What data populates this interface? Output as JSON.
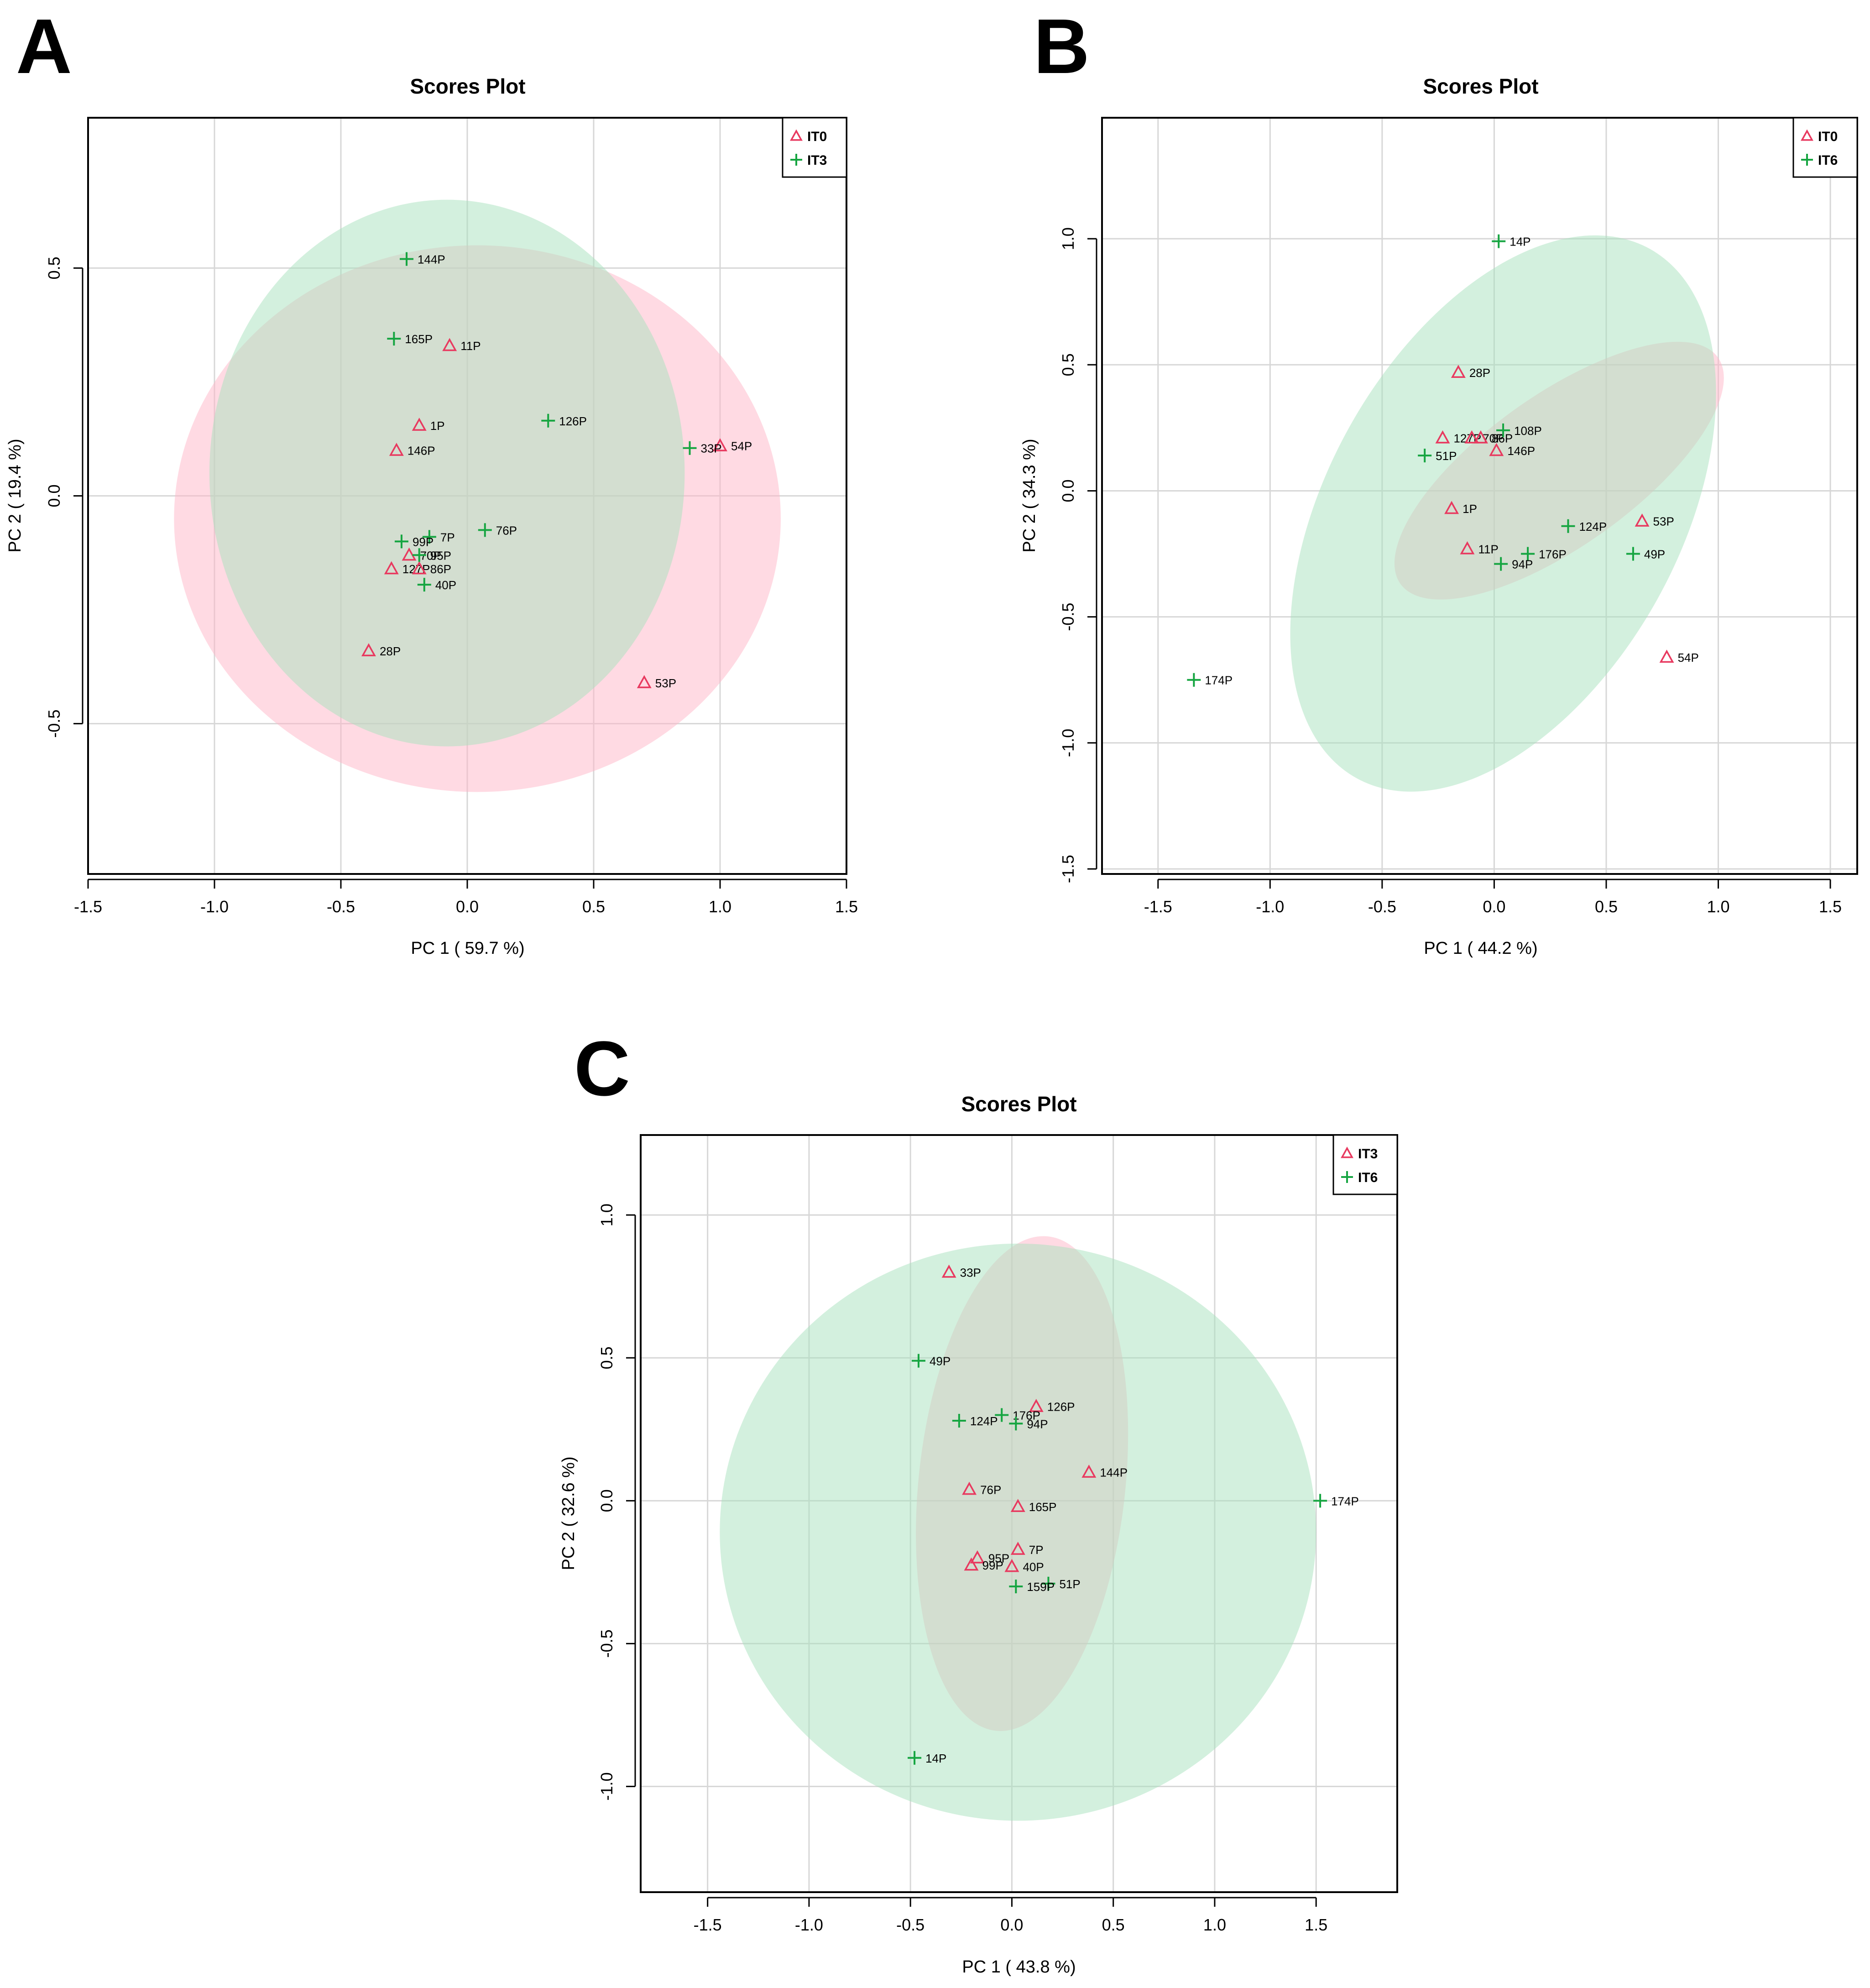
{
  "figure": {
    "panels": [
      "A",
      "B",
      "C"
    ]
  },
  "chart_data": [
    {
      "panel": "A",
      "type": "scatter",
      "title": "Scores Plot",
      "xlabel": "PC 1 ( 59.7 %)",
      "ylabel": "PC 2 ( 19.4 %)",
      "xlim": [
        -1.5,
        1.5
      ],
      "ylim": [
        -0.83,
        0.83
      ],
      "xticks": [
        "-1.5",
        "-1.0",
        "-0.5",
        "0.0",
        "0.5",
        "1.0",
        "1.5"
      ],
      "yticks": [
        "-0.5",
        "0.0",
        "0.5"
      ],
      "grid": true,
      "legend_position": "top-right",
      "series": [
        {
          "name": "IT0",
          "marker": "triangle",
          "color": "#e8395f",
          "fill": "#ffb6c8",
          "ellipse": {
            "cx": 0.04,
            "cy": -0.05,
            "rx": 1.2,
            "ry": 0.6
          },
          "points": [
            {
              "label": "11P",
              "x": -0.07,
              "y": 0.33
            },
            {
              "label": "1P",
              "x": -0.19,
              "y": 0.155
            },
            {
              "label": "146P",
              "x": -0.28,
              "y": 0.1
            },
            {
              "label": "54P",
              "x": 1.0,
              "y": 0.11
            },
            {
              "label": "70P",
              "x": -0.23,
              "y": -0.13
            },
            {
              "label": "127P",
              "x": -0.3,
              "y": -0.16
            },
            {
              "label": "86P",
              "x": -0.19,
              "y": -0.16
            },
            {
              "label": "28P",
              "x": -0.39,
              "y": -0.34
            },
            {
              "label": "53P",
              "x": 0.7,
              "y": -0.41
            }
          ]
        },
        {
          "name": "IT3",
          "marker": "plus",
          "color": "#16a541",
          "fill": "#a7e2bd",
          "ellipse": {
            "cx": -0.08,
            "cy": 0.05,
            "rx": 0.94,
            "ry": 0.6
          },
          "points": [
            {
              "label": "144P",
              "x": -0.24,
              "y": 0.52
            },
            {
              "label": "165P",
              "x": -0.29,
              "y": 0.345
            },
            {
              "label": "126P",
              "x": 0.32,
              "y": 0.165
            },
            {
              "label": "33P",
              "x": 0.88,
              "y": 0.105
            },
            {
              "label": "76P",
              "x": 0.07,
              "y": -0.075
            },
            {
              "label": "7P",
              "x": -0.15,
              "y": -0.09
            },
            {
              "label": "99P",
              "x": -0.26,
              "y": -0.1
            },
            {
              "label": "95P",
              "x": -0.19,
              "y": -0.13
            },
            {
              "label": "40P",
              "x": -0.17,
              "y": -0.195
            }
          ]
        }
      ]
    },
    {
      "panel": "B",
      "type": "scatter",
      "title": "Scores Plot",
      "xlabel": "PC 1 ( 44.2 %)",
      "ylabel": "PC 2 ( 34.3 %)",
      "xlim": [
        -1.75,
        1.62
      ],
      "ylim": [
        -1.52,
        1.48
      ],
      "xticks": [
        "-1.5",
        "-1.0",
        "-0.5",
        "0.0",
        "0.5",
        "1.0",
        "1.5"
      ],
      "yticks": [
        "-1.5",
        "-1.0",
        "-0.5",
        "0.0",
        "0.5",
        "1.0"
      ],
      "grid": true,
      "legend_position": "top-right",
      "series": [
        {
          "name": "IT0",
          "marker": "triangle",
          "color": "#e8395f",
          "fill": "#ffb6c8",
          "ellipse": {
            "cx": 0.29,
            "cy": 0.08,
            "rx": 0.87,
            "ry": 0.3,
            "angle": -35.5
          },
          "points": [
            {
              "label": "28P",
              "x": -0.16,
              "y": 0.47
            },
            {
              "label": "127P",
              "x": -0.23,
              "y": 0.21
            },
            {
              "label": "70P",
              "x": -0.1,
              "y": 0.21
            },
            {
              "label": "86P",
              "x": -0.06,
              "y": 0.21
            },
            {
              "label": "146P",
              "x": 0.01,
              "y": 0.16
            },
            {
              "label": "1P",
              "x": -0.19,
              "y": -0.07
            },
            {
              "label": "11P",
              "x": -0.12,
              "y": -0.23
            },
            {
              "label": "53P",
              "x": 0.66,
              "y": -0.12
            },
            {
              "label": "54P",
              "x": 0.77,
              "y": -0.66
            }
          ]
        },
        {
          "name": "IT6",
          "marker": "plus",
          "color": "#16a541",
          "fill": "#a7e2bd",
          "ellipse": {
            "cx": 0.04,
            "cy": -0.09,
            "rx": 1.35,
            "ry": 0.7,
            "angle": -61
          },
          "points": [
            {
              "label": "14P",
              "x": 0.02,
              "y": 0.99
            },
            {
              "label": "108P",
              "x": 0.04,
              "y": 0.24
            },
            {
              "label": "51P",
              "x": -0.31,
              "y": 0.14
            },
            {
              "label": "124P",
              "x": 0.33,
              "y": -0.14
            },
            {
              "label": "176P",
              "x": 0.15,
              "y": -0.25
            },
            {
              "label": "49P",
              "x": 0.62,
              "y": -0.25
            },
            {
              "label": "94P",
              "x": 0.03,
              "y": -0.29
            },
            {
              "label": "174P",
              "x": -1.34,
              "y": -0.75
            }
          ]
        }
      ]
    },
    {
      "panel": "C",
      "type": "scatter",
      "title": "Scores Plot",
      "xlabel": "PC 1 ( 43.8 %)",
      "ylabel": "PC 2 ( 32.6 %)",
      "xlim": [
        -1.83,
        1.9
      ],
      "ylim": [
        -1.37,
        1.28
      ],
      "xticks": [
        "-1.5",
        "-1.0",
        "-0.5",
        "0.0",
        "0.5",
        "1.0",
        "1.5"
      ],
      "yticks": [
        "-1.0",
        "-0.5",
        "0.0",
        "0.5",
        "1.0"
      ],
      "grid": true,
      "legend_position": "top-right",
      "series": [
        {
          "name": "IT3",
          "marker": "triangle",
          "color": "#e8395f",
          "fill": "#ffb6c8",
          "ellipse": {
            "cx": 0.05,
            "cy": 0.06,
            "rx": 0.51,
            "ry": 0.87,
            "angle": 6
          },
          "points": [
            {
              "label": "33P",
              "x": -0.31,
              "y": 0.8
            },
            {
              "label": "126P",
              "x": 0.12,
              "y": 0.33
            },
            {
              "label": "144P",
              "x": 0.38,
              "y": 0.1
            },
            {
              "label": "76P",
              "x": -0.21,
              "y": 0.04
            },
            {
              "label": "165P",
              "x": 0.03,
              "y": -0.02
            },
            {
              "label": "7P",
              "x": 0.03,
              "y": -0.17
            },
            {
              "label": "95P",
              "x": -0.17,
              "y": -0.2
            },
            {
              "label": "40P",
              "x": 0.0,
              "y": -0.23
            },
            {
              "label": "99P",
              "x": -0.2,
              "y": -0.225
            }
          ]
        },
        {
          "name": "IT6",
          "marker": "plus",
          "color": "#16a541",
          "fill": "#a7e2bd",
          "ellipse": {
            "cx": 0.03,
            "cy": -0.11,
            "rx": 1.47,
            "ry": 1.01
          },
          "points": [
            {
              "label": "49P",
              "x": -0.46,
              "y": 0.49
            },
            {
              "label": "176P",
              "x": -0.05,
              "y": 0.3
            },
            {
              "label": "124P",
              "x": -0.26,
              "y": 0.28
            },
            {
              "label": "94P",
              "x": 0.02,
              "y": 0.27
            },
            {
              "label": "174P",
              "x": 1.52,
              "y": 0.0
            },
            {
              "label": "51P",
              "x": 0.18,
              "y": -0.29
            },
            {
              "label": "159P",
              "x": 0.02,
              "y": -0.3
            },
            {
              "label": "14P",
              "x": -0.48,
              "y": -0.9
            }
          ]
        }
      ]
    }
  ]
}
